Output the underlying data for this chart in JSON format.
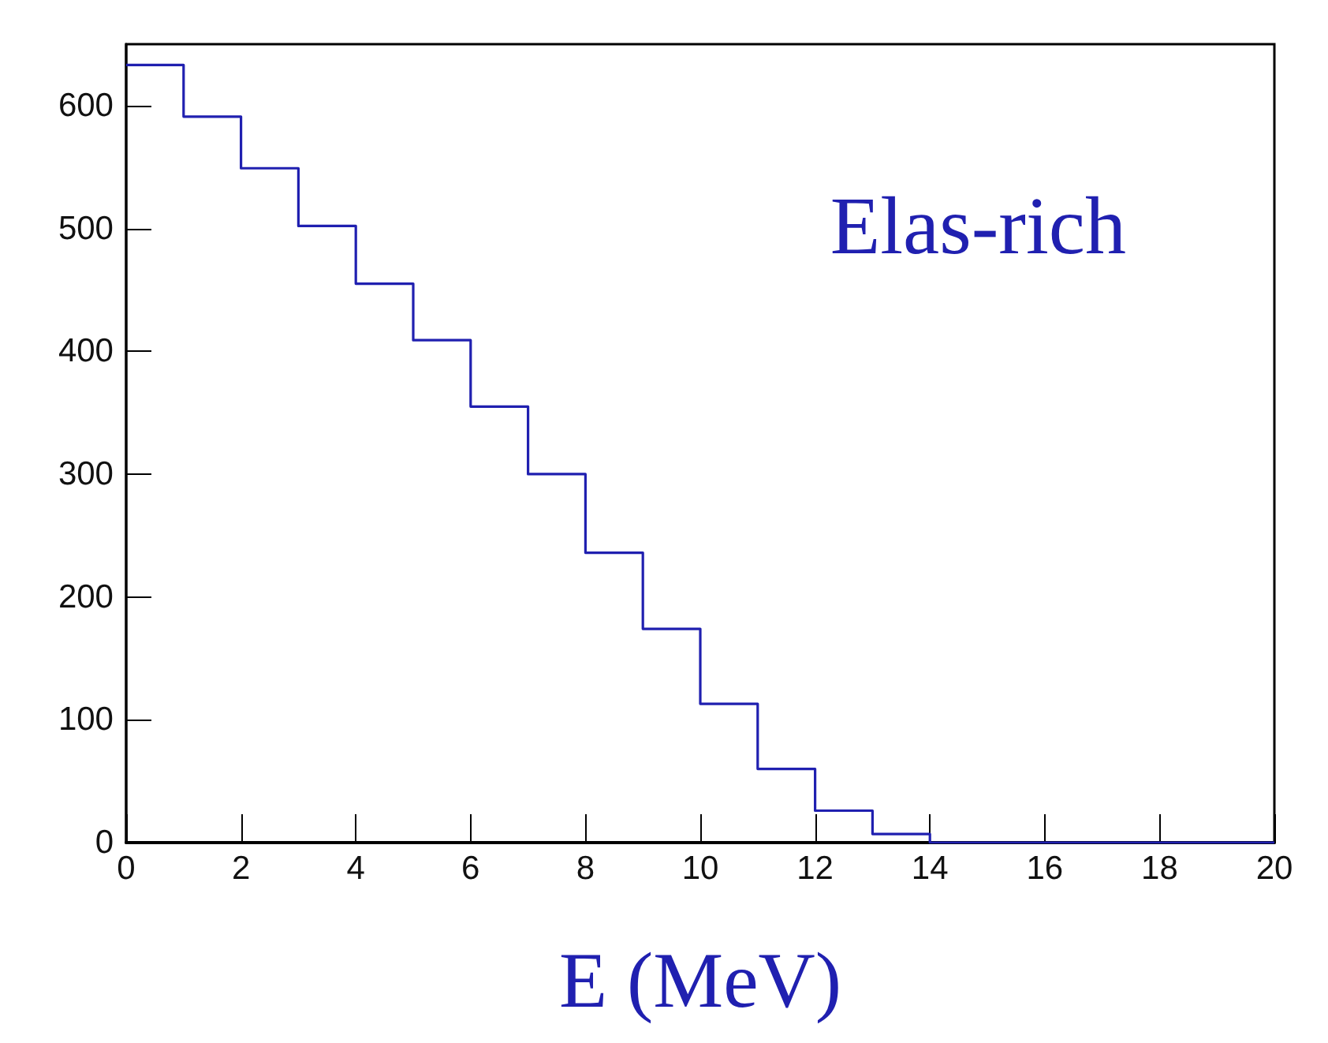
{
  "chart_data": {
    "type": "histogram",
    "xlabel": "E (MeV)",
    "annotations": [
      "Elas-rich"
    ],
    "bins": [
      0,
      1,
      2,
      3,
      4,
      5,
      6,
      7,
      8,
      9,
      10,
      11,
      12,
      13,
      14,
      15,
      16,
      17,
      18,
      19,
      20
    ],
    "values": [
      633,
      591,
      549,
      502,
      455,
      409,
      355,
      300,
      236,
      174,
      113,
      60,
      26,
      7,
      0,
      0,
      0,
      0,
      0,
      0
    ],
    "color": "#2020b0",
    "xlim": [
      0,
      20
    ],
    "xticks": [
      0,
      2,
      4,
      6,
      8,
      10,
      12,
      14,
      16,
      18,
      20
    ],
    "ylim": [
      0,
      650
    ],
    "yticks": [
      0,
      100,
      200,
      300,
      400,
      500,
      600
    ],
    "grid": false
  }
}
